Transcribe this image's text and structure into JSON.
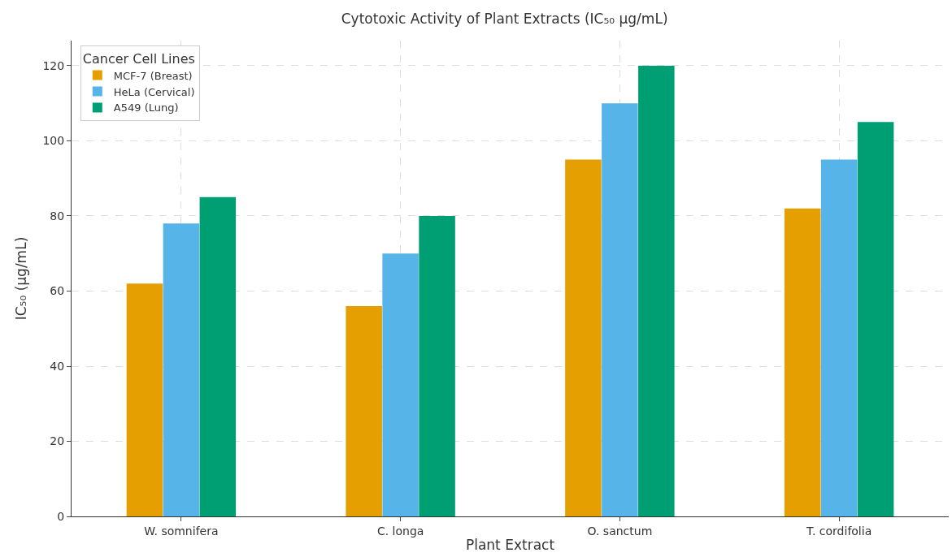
{
  "chart_data": {
    "type": "bar",
    "title": "Cytotoxic Activity of Plant Extracts (IC₅₀ µg/mL)",
    "xlabel": "Plant Extract",
    "ylabel": "IC₅₀ (µg/mL)",
    "legend_title": "Cancer Cell Lines",
    "categories": [
      "W. somnifera",
      "C. longa",
      "O. sanctum",
      "T. cordifolia"
    ],
    "series": [
      {
        "name": "MCF-7 (Breast)",
        "color": "#e69f00",
        "values": [
          62,
          56,
          95,
          82
        ]
      },
      {
        "name": "HeLa (Cervical)",
        "color": "#56b4e9",
        "values": [
          78,
          70,
          110,
          95
        ]
      },
      {
        "name": "A549 (Lung)",
        "color": "#009e73",
        "values": [
          85,
          80,
          120,
          105
        ]
      }
    ],
    "ylim": [
      0,
      126.7
    ],
    "yticks": [
      0,
      20,
      40,
      60,
      80,
      100,
      120
    ],
    "grid": true,
    "legend": "top left"
  }
}
